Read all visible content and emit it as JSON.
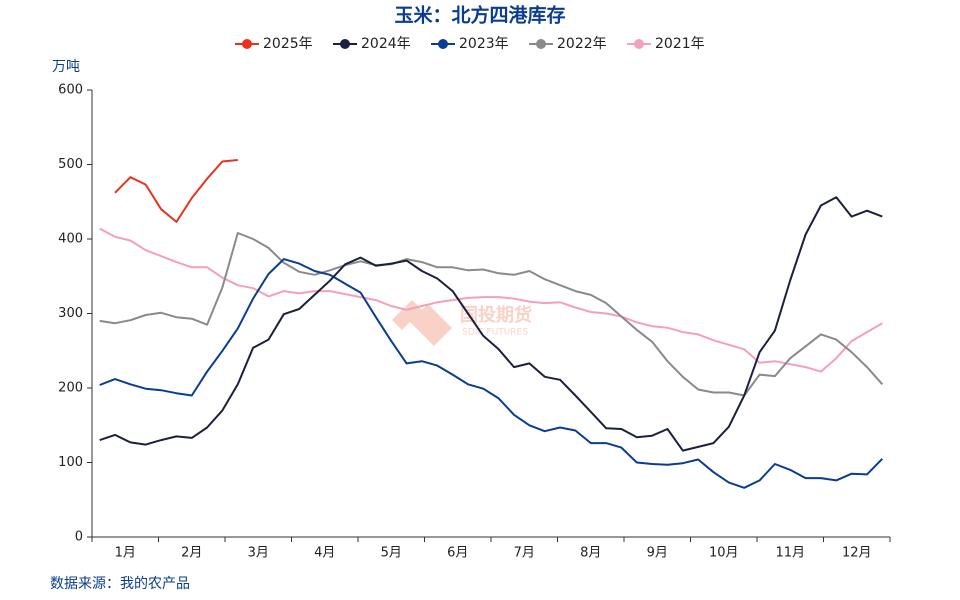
{
  "chart_data": {
    "type": "line",
    "title": "玉米：北方四港库存",
    "y_unit": "万吨",
    "source": "数据来源：我的农产品",
    "watermark": {
      "cn": "国投期货",
      "en": "SDIC FUTURES"
    },
    "month_labels": [
      "1月",
      "2月",
      "3月",
      "4月",
      "5月",
      "6月",
      "7月",
      "8月",
      "9月",
      "10月",
      "11月",
      "12月"
    ],
    "categories": [
      null,
      null,
      null,
      null,
      null,
      null,
      null,
      null,
      null,
      null,
      null,
      null,
      null,
      null,
      null,
      null,
      null,
      null,
      null,
      null,
      null,
      null,
      null,
      null,
      null,
      null,
      null,
      null,
      null,
      null,
      null,
      null,
      null,
      null,
      null,
      null,
      null,
      null,
      null,
      null,
      null,
      null,
      null,
      null,
      null,
      null,
      null,
      null,
      null,
      null,
      null,
      null
    ],
    "ylim": [
      0,
      600
    ],
    "yticks": [
      0,
      100,
      200,
      300,
      400,
      500,
      600
    ],
    "series": [
      {
        "name": "2025年",
        "color": "#e8321e",
        "values": [
          null,
          462,
          483,
          473,
          440,
          423,
          455,
          481,
          504,
          506,
          null,
          null,
          null,
          null,
          null,
          null,
          null,
          null,
          null,
          null,
          null,
          null,
          null,
          null,
          null,
          null,
          null,
          null,
          null,
          null,
          null,
          null,
          null,
          null,
          null,
          null,
          null,
          null,
          null,
          null,
          null,
          null,
          null,
          null,
          null,
          null,
          null,
          null,
          null,
          null,
          null,
          null
        ]
      },
      {
        "name": "2024年",
        "color": "#1b2040",
        "values": [
          130,
          137,
          127,
          124,
          130,
          135,
          133,
          147,
          170,
          205,
          254,
          265,
          299,
          306,
          325,
          344,
          366,
          375,
          364,
          367,
          371,
          357,
          347,
          330,
          300,
          270,
          252,
          228,
          233,
          215,
          211,
          190,
          168,
          146,
          145,
          134,
          136,
          145,
          116,
          121,
          126,
          148,
          190,
          248,
          277,
          345,
          406,
          445,
          456,
          430,
          438,
          430
        ]
      },
      {
        "name": "2023年",
        "color": "#0a3d91",
        "values": [
          204,
          212,
          205,
          199,
          197,
          193,
          190,
          222,
          250,
          280,
          320,
          353,
          373,
          367,
          357,
          352,
          340,
          328,
          295,
          263,
          233,
          236,
          230,
          218,
          205,
          199,
          186,
          164,
          150,
          142,
          147,
          143,
          126,
          126,
          120,
          100,
          98,
          97,
          99,
          104,
          87,
          73,
          66,
          76,
          98,
          90,
          79,
          79,
          76,
          85,
          84,
          105
        ]
      },
      {
        "name": "2022年",
        "color": "#8a8a8a",
        "values": [
          290,
          287,
          291,
          298,
          301,
          295,
          293,
          285,
          335,
          408,
          400,
          388,
          368,
          356,
          352,
          358,
          365,
          370,
          365,
          366,
          373,
          369,
          362,
          362,
          358,
          359,
          354,
          352,
          357,
          346,
          338,
          330,
          325,
          314,
          296,
          278,
          262,
          236,
          215,
          198,
          194,
          194,
          190,
          218,
          216,
          240,
          256,
          272,
          265,
          248,
          228,
          205
        ]
      },
      {
        "name": "2021年",
        "color": "#f4a0b8",
        "values": [
          414,
          403,
          398,
          385,
          377,
          369,
          362,
          362,
          348,
          338,
          334,
          323,
          330,
          327,
          330,
          330,
          326,
          322,
          318,
          310,
          305,
          310,
          315,
          318,
          321,
          322,
          322,
          320,
          316,
          314,
          315,
          308,
          302,
          300,
          296,
          288,
          283,
          281,
          275,
          272,
          264,
          258,
          252,
          234,
          236,
          232,
          228,
          222,
          240,
          263,
          275,
          287
        ]
      }
    ]
  }
}
